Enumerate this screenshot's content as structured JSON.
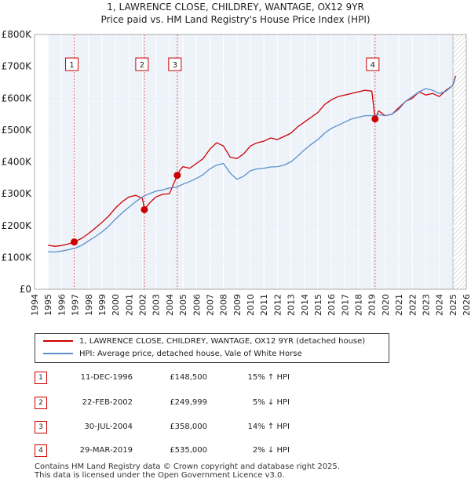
{
  "chart_data": {
    "type": "line",
    "title": "1, LAWRENCE CLOSE, CHILDREY, WANTAGE, OX12 9YR",
    "subtitle": "Price paid vs. HM Land Registry's House Price Index (HPI)",
    "xlabel": "",
    "ylabel": "",
    "xlim": [
      1994,
      2026
    ],
    "ylim": [
      0,
      800000
    ],
    "x_ticks": [
      1994,
      1995,
      1996,
      1997,
      1998,
      1999,
      2000,
      2001,
      2002,
      2003,
      2004,
      2005,
      2006,
      2007,
      2008,
      2009,
      2010,
      2011,
      2012,
      2013,
      2014,
      2015,
      2016,
      2017,
      2018,
      2019,
      2020,
      2021,
      2022,
      2023,
      2024,
      2025,
      2026
    ],
    "y_ticks": [
      0,
      100000,
      200000,
      300000,
      400000,
      500000,
      600000,
      700000,
      800000
    ],
    "y_tick_labels": [
      "£0",
      "£100K",
      "£200K",
      "£300K",
      "£400K",
      "£500K",
      "£600K",
      "£700K",
      "£800K"
    ],
    "data_start": 1995.0,
    "data_end": 2025.3,
    "hatched_after": 2025.0,
    "series": [
      {
        "name": "1, LAWRENCE CLOSE, CHILDREY, WANTAGE, OX12 9YR (detached house)",
        "color": "#cc0000",
        "x": [
          1995.0,
          1995.5,
          1996.0,
          1996.5,
          1996.94,
          1997.5,
          1998.0,
          1998.5,
          1999.0,
          1999.5,
          2000.0,
          2000.5,
          2001.0,
          2001.5,
          2002.0,
          2002.14,
          2002.5,
          2003.0,
          2003.5,
          2004.0,
          2004.58,
          2004.8,
          2005.0,
          2005.5,
          2006.0,
          2006.5,
          2007.0,
          2007.5,
          2008.0,
          2008.5,
          2009.0,
          2009.5,
          2010.0,
          2010.5,
          2011.0,
          2011.5,
          2012.0,
          2012.5,
          2013.0,
          2013.5,
          2014.0,
          2014.5,
          2015.0,
          2015.5,
          2016.0,
          2016.5,
          2017.0,
          2017.5,
          2018.0,
          2018.5,
          2019.0,
          2019.24,
          2019.5,
          2020.0,
          2020.5,
          2021.0,
          2021.5,
          2022.0,
          2022.5,
          2023.0,
          2023.5,
          2024.0,
          2024.5,
          2025.0,
          2025.2
        ],
        "y": [
          138000,
          135000,
          137000,
          142000,
          148500,
          160000,
          175000,
          192000,
          210000,
          230000,
          255000,
          275000,
          290000,
          295000,
          285000,
          249999,
          270000,
          290000,
          298000,
          300000,
          358000,
          375000,
          385000,
          380000,
          395000,
          410000,
          440000,
          460000,
          450000,
          415000,
          410000,
          425000,
          450000,
          460000,
          465000,
          475000,
          470000,
          480000,
          490000,
          510000,
          525000,
          540000,
          555000,
          580000,
          595000,
          605000,
          610000,
          615000,
          620000,
          625000,
          622000,
          535000,
          560000,
          545000,
          550000,
          570000,
          590000,
          600000,
          620000,
          610000,
          615000,
          605000,
          625000,
          640000,
          670000
        ]
      },
      {
        "name": "HPI: Average price, detached house, Vale of White Horse",
        "color": "#5a8fcc",
        "x": [
          1995.0,
          1995.5,
          1996.0,
          1996.5,
          1997.0,
          1997.5,
          1998.0,
          1998.5,
          1999.0,
          1999.5,
          2000.0,
          2000.5,
          2001.0,
          2001.5,
          2002.0,
          2002.5,
          2003.0,
          2003.5,
          2004.0,
          2004.5,
          2005.0,
          2005.5,
          2006.0,
          2006.5,
          2007.0,
          2007.5,
          2008.0,
          2008.5,
          2009.0,
          2009.5,
          2010.0,
          2010.5,
          2011.0,
          2011.5,
          2012.0,
          2012.5,
          2013.0,
          2013.5,
          2014.0,
          2014.5,
          2015.0,
          2015.5,
          2016.0,
          2016.5,
          2017.0,
          2017.5,
          2018.0,
          2018.5,
          2019.0,
          2019.5,
          2020.0,
          2020.5,
          2021.0,
          2021.5,
          2022.0,
          2022.5,
          2023.0,
          2023.5,
          2024.0,
          2024.5,
          2025.0,
          2025.2
        ],
        "y": [
          118000,
          117000,
          120000,
          124000,
          129000,
          138000,
          152000,
          165000,
          180000,
          198000,
          220000,
          240000,
          258000,
          275000,
          290000,
          300000,
          308000,
          312000,
          318000,
          320000,
          330000,
          338000,
          348000,
          360000,
          378000,
          390000,
          395000,
          365000,
          345000,
          355000,
          372000,
          378000,
          380000,
          384000,
          385000,
          390000,
          400000,
          418000,
          438000,
          455000,
          470000,
          490000,
          505000,
          515000,
          525000,
          535000,
          540000,
          545000,
          545000,
          548000,
          545000,
          550000,
          565000,
          590000,
          605000,
          620000,
          630000,
          625000,
          615000,
          622000,
          640000,
          665000
        ]
      }
    ],
    "sales": [
      {
        "label": "1",
        "x": 1996.94,
        "y": 148500
      },
      {
        "label": "2",
        "x": 2002.14,
        "y": 249999
      },
      {
        "label": "3",
        "x": 2004.58,
        "y": 358000
      },
      {
        "label": "4",
        "x": 2019.24,
        "y": 535000
      }
    ]
  },
  "legend": {
    "property_label": "1, LAWRENCE CLOSE, CHILDREY, WANTAGE, OX12 9YR (detached house)",
    "hpi_label": "HPI: Average price, detached house, Vale of White Horse"
  },
  "transactions": [
    {
      "num": "1",
      "date": "11-DEC-1996",
      "price": "£148,500",
      "hpi": "15% ↑ HPI"
    },
    {
      "num": "2",
      "date": "22-FEB-2002",
      "price": "£249,999",
      "hpi": "5% ↓ HPI"
    },
    {
      "num": "3",
      "date": "30-JUL-2004",
      "price": "£358,000",
      "hpi": "14% ↑ HPI"
    },
    {
      "num": "4",
      "date": "29-MAR-2019",
      "price": "£535,000",
      "hpi": "2% ↓ HPI"
    }
  ],
  "footer": {
    "line1": "Contains HM Land Registry data © Crown copyright and database right 2025.",
    "line2": "This data is licensed under the Open Government Licence v3.0."
  }
}
